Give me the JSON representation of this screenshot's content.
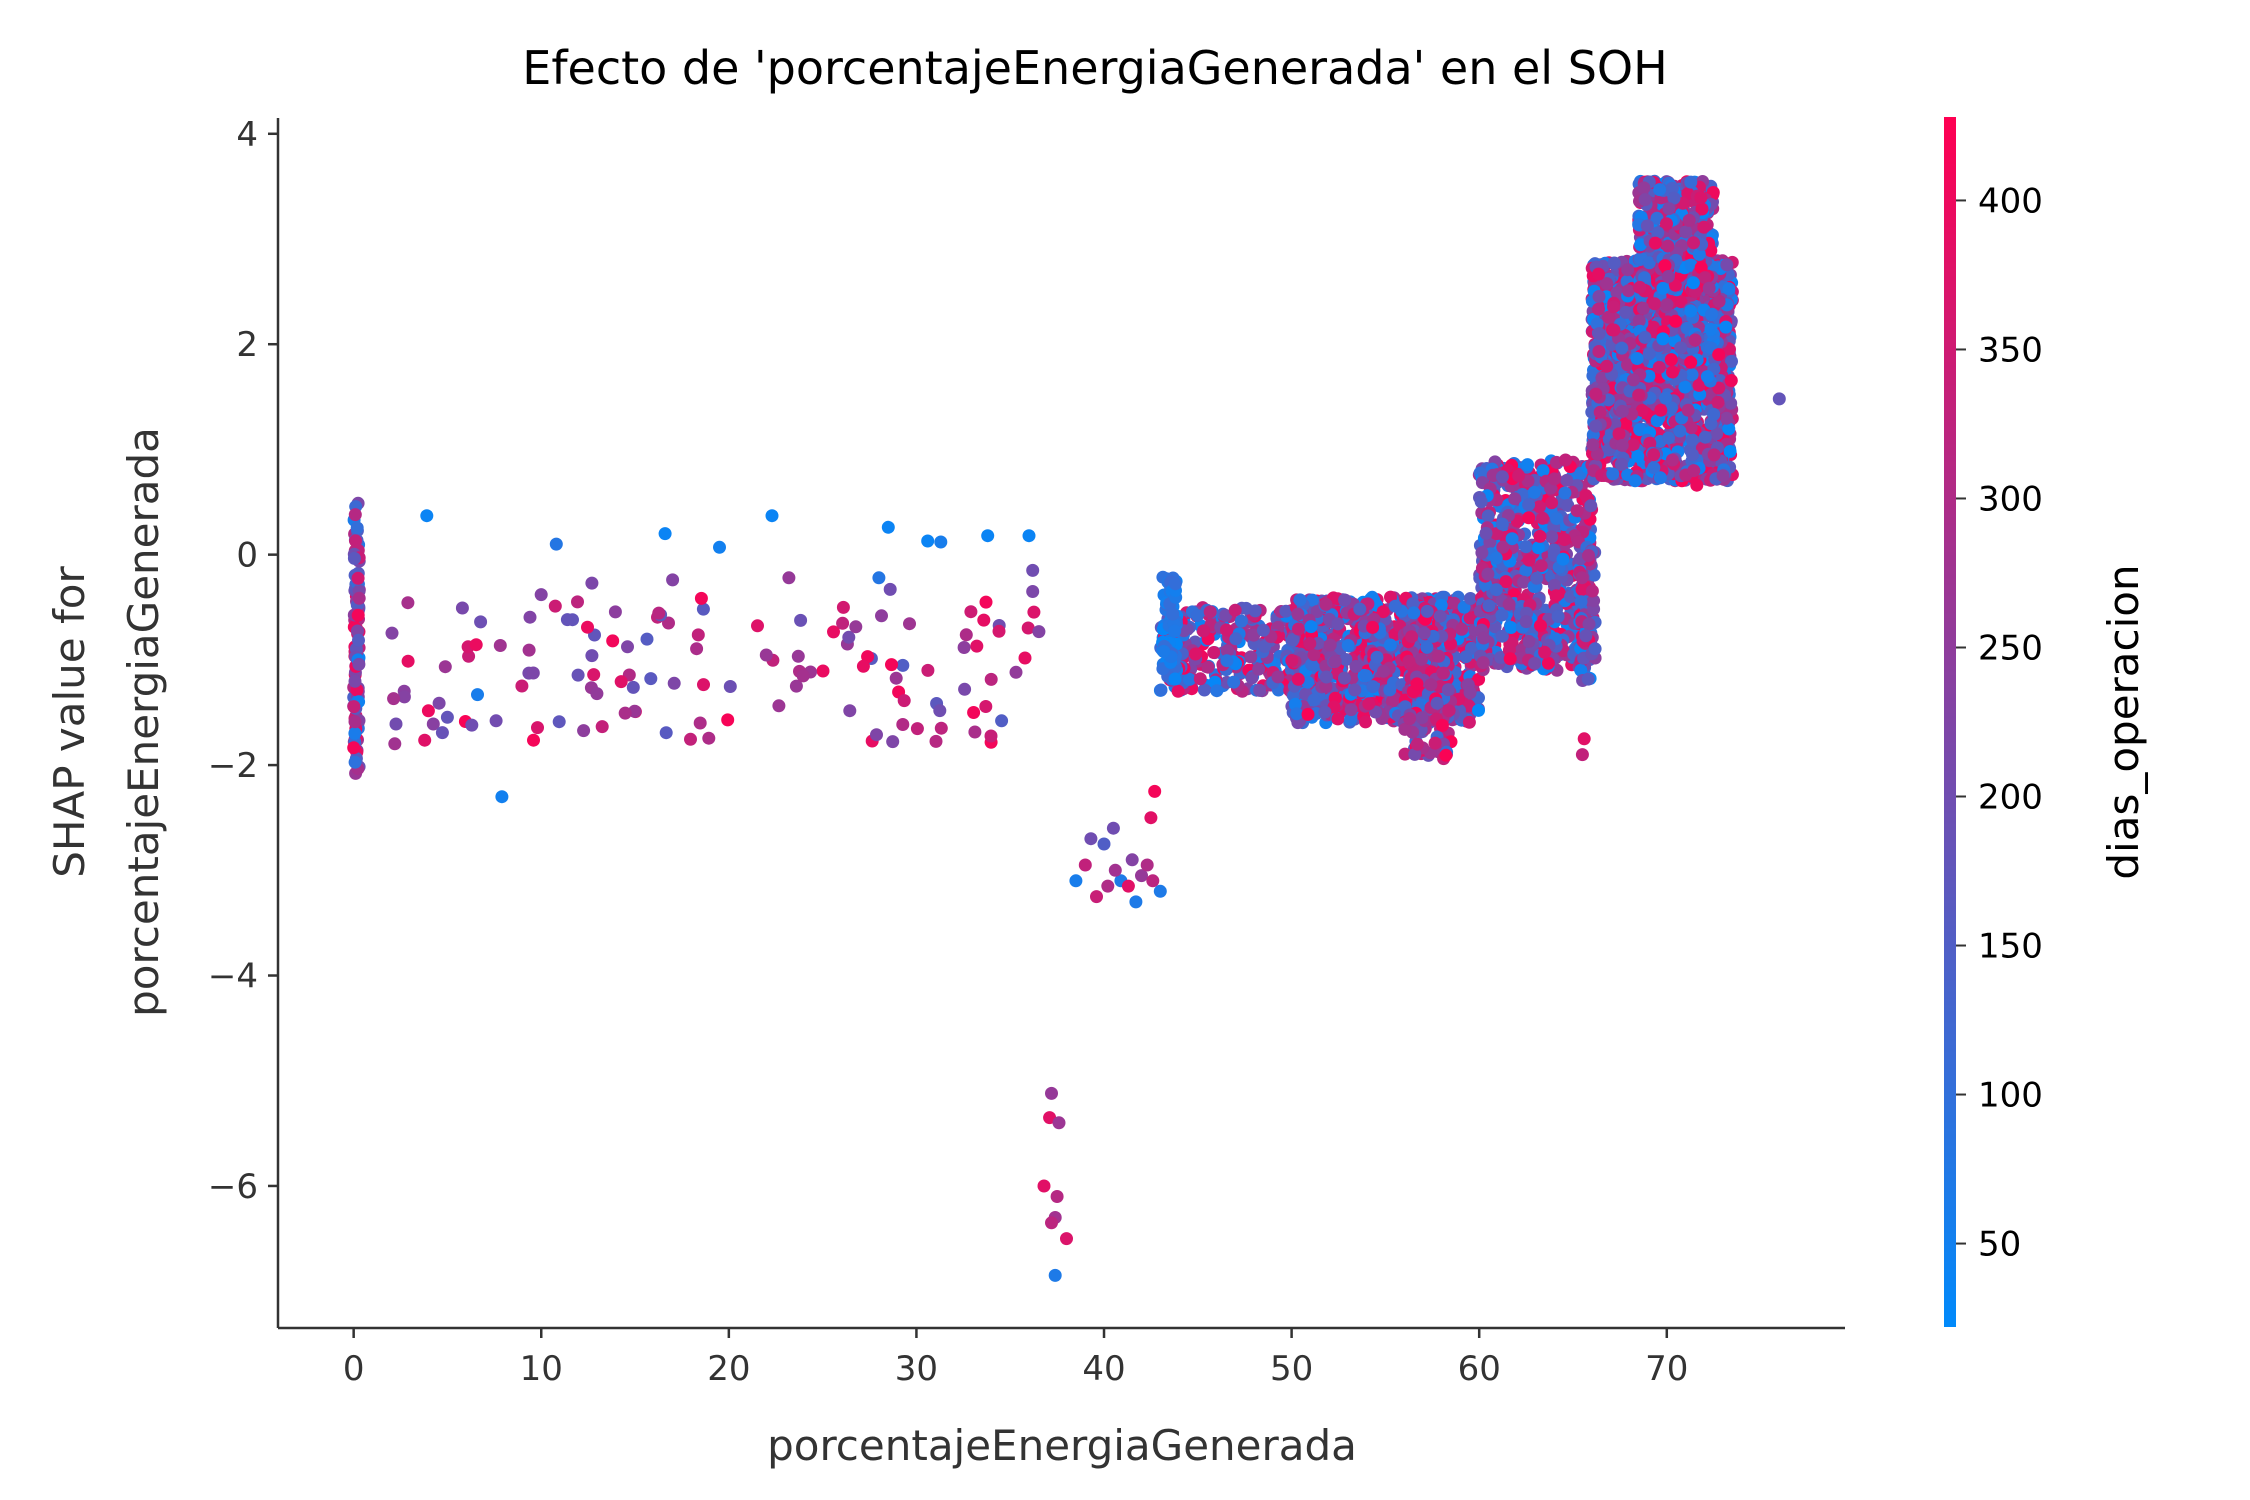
{
  "chart_data": {
    "type": "scatter",
    "title": "Efecto de 'porcentajeEnergiaGenerada' en el SOH",
    "xlabel": "porcentajeEnergiaGenerada",
    "ylabel": "SHAP value for\nporcentajeEnergiaGenerada",
    "xlim": [
      -3.5,
      79.5
    ],
    "ylim": [
      -7.35,
      4.15
    ],
    "x_ticks": [
      0,
      10,
      20,
      30,
      40,
      50,
      60,
      70
    ],
    "x_tick_labels": [
      "0",
      "10",
      "20",
      "30",
      "40",
      "50",
      "60",
      "70"
    ],
    "y_ticks": [
      4,
      2,
      0,
      -2,
      -4,
      -6
    ],
    "y_tick_labels": [
      "4",
      "2",
      "0",
      "−2",
      "−4",
      "−6"
    ],
    "grid": false,
    "colorbar": {
      "label": "dias_operacion",
      "range": [
        22,
        428
      ],
      "ticks": [
        50,
        100,
        150,
        200,
        250,
        300,
        350,
        400
      ],
      "tick_labels": [
        "50",
        "100",
        "150",
        "200",
        "250",
        "300",
        "350",
        "400"
      ],
      "colormap": [
        "#008afb",
        "#ff0052"
      ]
    },
    "clusters": [
      {
        "x": [
          0,
          0.3
        ],
        "y": [
          -2.1,
          0.5
        ],
        "c": [
          30,
          420
        ],
        "n": 110
      },
      {
        "x": [
          1.8,
          36.6
        ],
        "y": [
          -1.8,
          -0.4
        ],
        "c": [
          150,
          420
        ],
        "n": 130
      },
      {
        "x": [
          43,
          52
        ],
        "y": [
          -1.3,
          -0.5
        ],
        "c": [
          30,
          420
        ],
        "n": 320
      },
      {
        "x": [
          43.1,
          43.9
        ],
        "y": [
          -1.2,
          -0.2
        ],
        "c": [
          30,
          120
        ],
        "n": 60
      },
      {
        "x": [
          50,
          60
        ],
        "y": [
          -1.6,
          -0.4
        ],
        "c": [
          30,
          420
        ],
        "n": 900
      },
      {
        "x": [
          56,
          58.5
        ],
        "y": [
          -1.95,
          -0.7
        ],
        "c": [
          100,
          420
        ],
        "n": 140
      },
      {
        "x": [
          60,
          66
        ],
        "y": [
          -1.1,
          0.9
        ],
        "c": [
          30,
          420
        ],
        "n": 700
      },
      {
        "x": [
          65.3,
          66.2
        ],
        "y": [
          -1.2,
          0.1
        ],
        "c": [
          30,
          400
        ],
        "n": 70
      },
      {
        "x": [
          66,
          73.5
        ],
        "y": [
          0.7,
          2.8
        ],
        "c": [
          30,
          420
        ],
        "n": 1500
      },
      {
        "x": [
          68.5,
          72.5
        ],
        "y": [
          2.5,
          3.55
        ],
        "c": [
          30,
          420
        ],
        "n": 400
      }
    ],
    "points": [
      {
        "x": 3.9,
        "y": 0.37,
        "c": 40
      },
      {
        "x": 7.9,
        "y": -2.3,
        "c": 50
      },
      {
        "x": 6.6,
        "y": -1.33,
        "c": 60
      },
      {
        "x": 6.3,
        "y": -1.62,
        "c": 200
      },
      {
        "x": 10.8,
        "y": 0.1,
        "c": 80
      },
      {
        "x": 16.6,
        "y": 0.2,
        "c": 40
      },
      {
        "x": 19.5,
        "y": 0.07,
        "c": 50
      },
      {
        "x": 22.3,
        "y": 0.37,
        "c": 40
      },
      {
        "x": 28.5,
        "y": 0.26,
        "c": 40
      },
      {
        "x": 30.6,
        "y": 0.13,
        "c": 40
      },
      {
        "x": 31.3,
        "y": 0.12,
        "c": 60
      },
      {
        "x": 33.8,
        "y": 0.18,
        "c": 40
      },
      {
        "x": 36.0,
        "y": 0.18,
        "c": 40
      },
      {
        "x": 36.2,
        "y": -0.15,
        "c": 200
      },
      {
        "x": 36.2,
        "y": -0.35,
        "c": 220
      },
      {
        "x": 10.0,
        "y": -0.38,
        "c": 230
      },
      {
        "x": 12.7,
        "y": -0.27,
        "c": 220
      },
      {
        "x": 17.0,
        "y": -0.24,
        "c": 230
      },
      {
        "x": 23.2,
        "y": -0.22,
        "c": 260
      },
      {
        "x": 28.0,
        "y": -0.22,
        "c": 80
      },
      {
        "x": 28.6,
        "y": -0.33,
        "c": 200
      },
      {
        "x": 38.5,
        "y": -3.1,
        "c": 60
      },
      {
        "x": 39.3,
        "y": -2.7,
        "c": 200
      },
      {
        "x": 39.6,
        "y": -3.25,
        "c": 340
      },
      {
        "x": 40.0,
        "y": -2.75,
        "c": 150
      },
      {
        "x": 40.2,
        "y": -3.15,
        "c": 300
      },
      {
        "x": 40.5,
        "y": -2.6,
        "c": 200
      },
      {
        "x": 40.9,
        "y": -3.1,
        "c": 70
      },
      {
        "x": 40.6,
        "y": -3.0,
        "c": 280
      },
      {
        "x": 41.3,
        "y": -3.15,
        "c": 380
      },
      {
        "x": 41.5,
        "y": -2.9,
        "c": 230
      },
      {
        "x": 41.7,
        "y": -3.3,
        "c": 70
      },
      {
        "x": 42.0,
        "y": -3.05,
        "c": 260
      },
      {
        "x": 42.3,
        "y": -2.95,
        "c": 300
      },
      {
        "x": 42.5,
        "y": -2.5,
        "c": 380
      },
      {
        "x": 42.7,
        "y": -2.25,
        "c": 410
      },
      {
        "x": 43.0,
        "y": -3.2,
        "c": 70
      },
      {
        "x": 42.6,
        "y": -3.1,
        "c": 320
      },
      {
        "x": 39.0,
        "y": -2.95,
        "c": 330
      },
      {
        "x": 37.2,
        "y": -5.12,
        "c": 260
      },
      {
        "x": 37.1,
        "y": -5.35,
        "c": 380
      },
      {
        "x": 37.6,
        "y": -5.4,
        "c": 270
      },
      {
        "x": 36.8,
        "y": -6.0,
        "c": 380
      },
      {
        "x": 37.5,
        "y": -6.1,
        "c": 310
      },
      {
        "x": 37.4,
        "y": -6.3,
        "c": 280
      },
      {
        "x": 37.2,
        "y": -6.35,
        "c": 320
      },
      {
        "x": 38.0,
        "y": -6.5,
        "c": 370
      },
      {
        "x": 37.4,
        "y": -6.85,
        "c": 70
      },
      {
        "x": 65.6,
        "y": -1.75,
        "c": 380
      },
      {
        "x": 65.5,
        "y": -1.9,
        "c": 330
      },
      {
        "x": 76.0,
        "y": 1.48,
        "c": 180
      },
      {
        "x": 73.0,
        "y": 0.75,
        "c": 250
      },
      {
        "x": 71.6,
        "y": 0.66,
        "c": 400
      },
      {
        "x": 70.3,
        "y": 0.9,
        "c": 300
      },
      {
        "x": 69.3,
        "y": 0.95,
        "c": 350
      },
      {
        "x": 62.1,
        "y": 0.75,
        "c": 350
      },
      {
        "x": 64.6,
        "y": 0.9,
        "c": 330
      }
    ]
  }
}
